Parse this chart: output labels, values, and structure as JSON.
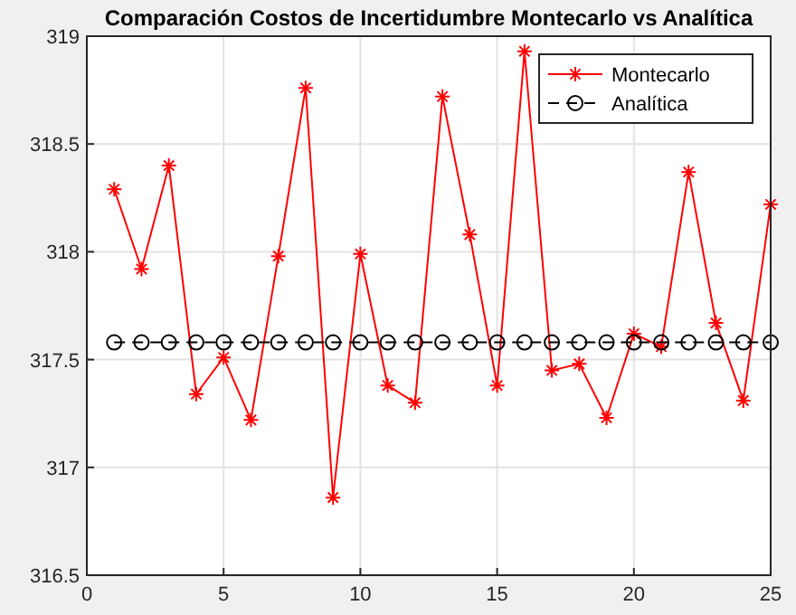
{
  "chart_data": {
    "type": "line",
    "title": "Comparación Costos de Incertidumbre Montecarlo vs Analítica",
    "x": [
      1,
      2,
      3,
      4,
      5,
      6,
      7,
      8,
      9,
      10,
      11,
      12,
      13,
      14,
      15,
      16,
      17,
      18,
      19,
      20,
      21,
      22,
      23,
      24,
      25
    ],
    "series": [
      {
        "name": "Montecarlo",
        "color": "#ff0000",
        "marker": "cross",
        "line_style": "solid",
        "values": [
          318.29,
          317.92,
          318.4,
          317.34,
          317.51,
          317.22,
          317.98,
          318.76,
          316.86,
          317.99,
          317.38,
          317.3,
          318.72,
          318.08,
          317.38,
          318.93,
          317.45,
          317.48,
          317.23,
          317.62,
          317.56,
          318.37,
          317.67,
          317.31,
          318.22
        ]
      },
      {
        "name": "Analítica",
        "color": "#000000",
        "marker": "circle",
        "line_style": "dashed",
        "values": [
          317.58,
          317.58,
          317.58,
          317.58,
          317.58,
          317.58,
          317.58,
          317.58,
          317.58,
          317.58,
          317.58,
          317.58,
          317.58,
          317.58,
          317.58,
          317.58,
          317.58,
          317.58,
          317.58,
          317.58,
          317.58,
          317.58,
          317.58,
          317.58,
          317.58
        ]
      }
    ],
    "xlim": [
      0,
      25
    ],
    "xticks": [
      0,
      5,
      10,
      15,
      20,
      25
    ],
    "ylim": [
      316.5,
      319
    ],
    "yticks": [
      316.5,
      317,
      317.5,
      318,
      318.5,
      319
    ],
    "grid": true,
    "legend": "top right"
  }
}
